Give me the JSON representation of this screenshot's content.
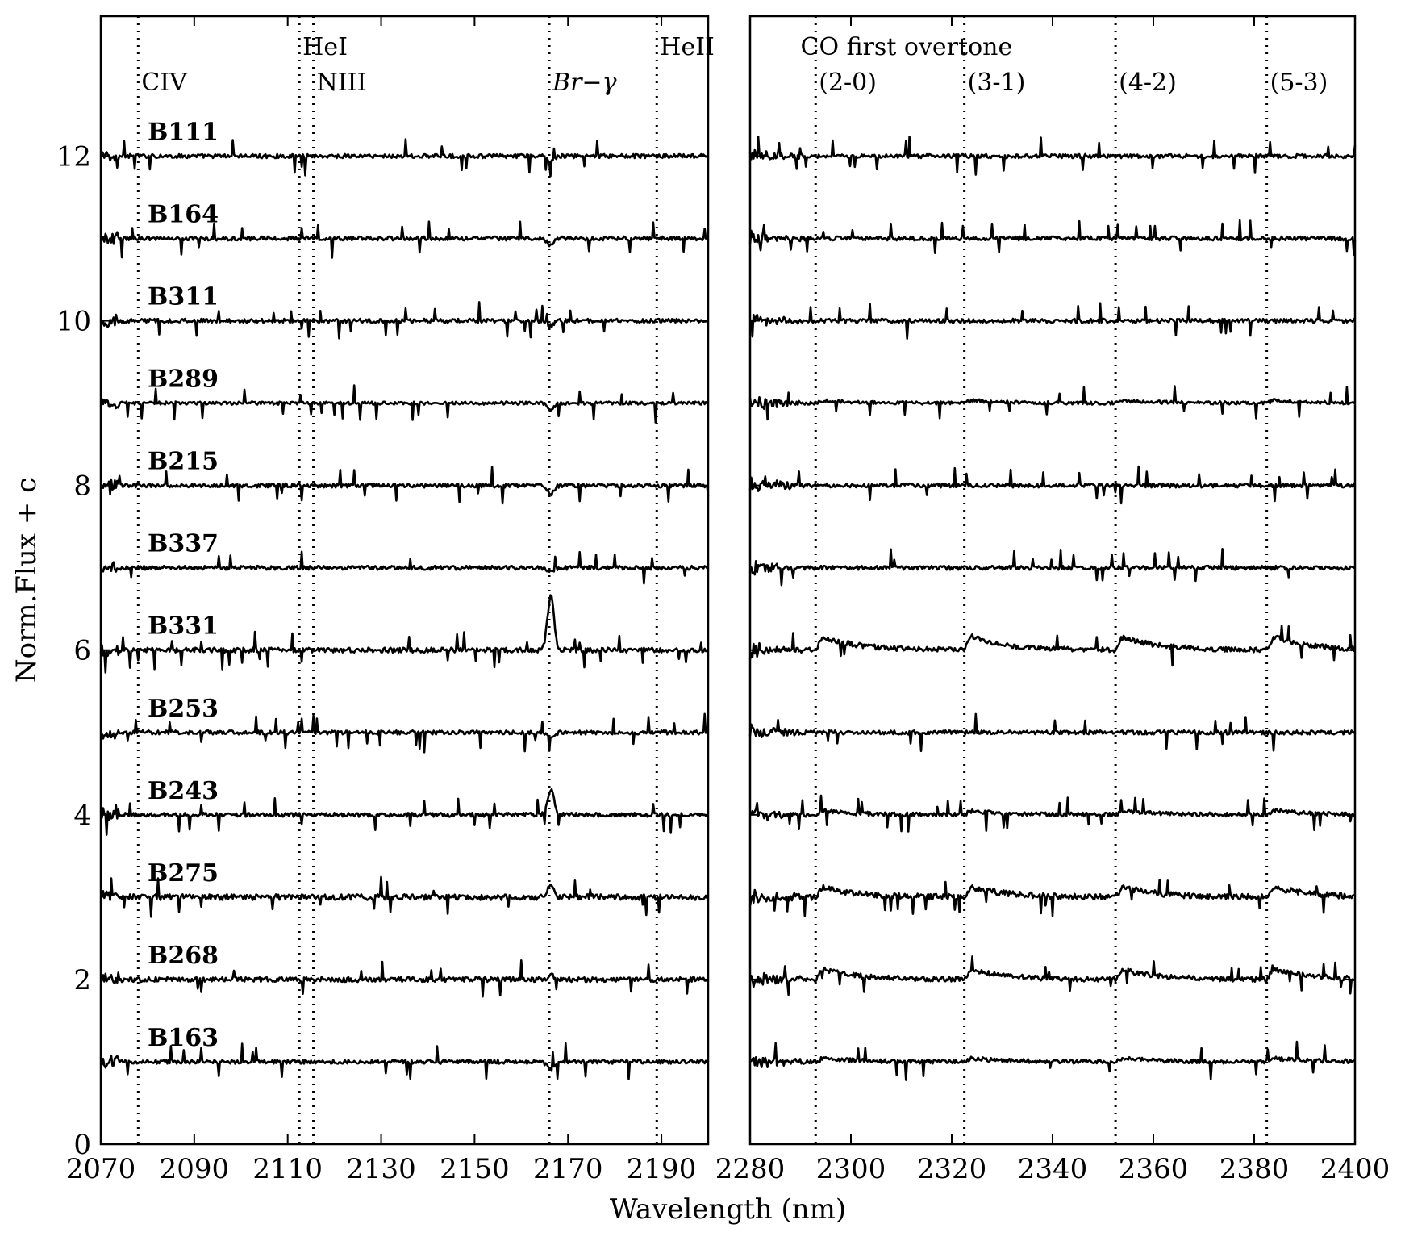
{
  "chart_data": {
    "type": "line",
    "title": "",
    "xlabel": "Wavelength (nm)",
    "ylabel": "Norm.Flux + c",
    "ylim": [
      0,
      13.7
    ],
    "yticks": [
      0,
      2,
      4,
      6,
      8,
      10,
      12
    ],
    "grid": false,
    "panels": [
      {
        "name": "left",
        "xlim": [
          2070,
          2200
        ],
        "xticks": [
          2070,
          2090,
          2110,
          2130,
          2150,
          2170,
          2190
        ],
        "markers": [
          {
            "label": "CIV",
            "x": 2078,
            "style": "normal",
            "label_row": "lower"
          },
          {
            "label": "HeI",
            "x": 2112.5,
            "style": "normal",
            "label_row": "upper"
          },
          {
            "label": "NIII",
            "x": 2115.5,
            "style": "normal",
            "label_row": "lower"
          },
          {
            "label": "Br−γ",
            "x": 2166,
            "style": "italic",
            "label_row": "lower"
          },
          {
            "label": "HeII",
            "x": 2189,
            "style": "normal",
            "label_row": "upper"
          }
        ]
      },
      {
        "name": "right",
        "xlim": [
          2280,
          2400
        ],
        "xticks": [
          2280,
          2300,
          2320,
          2340,
          2360,
          2380,
          2400
        ],
        "group_label": "CO first overtone",
        "markers": [
          {
            "label": "(2-0)",
            "x": 2293
          },
          {
            "label": "(3-1)",
            "x": 2322.5
          },
          {
            "label": "(4-2)",
            "x": 2352.5
          },
          {
            "label": "(5-3)",
            "x": 2382.5
          }
        ]
      }
    ],
    "series": [
      {
        "name": "B111",
        "offset": 12,
        "noise": 0.025,
        "brg": -0.07,
        "co": 0.0
      },
      {
        "name": "B164",
        "offset": 11,
        "noise": 0.025,
        "brg": -0.08,
        "co": 0.0
      },
      {
        "name": "B311",
        "offset": 10,
        "noise": 0.025,
        "brg": -0.06,
        "co": 0.0
      },
      {
        "name": "B289",
        "offset": 9,
        "noise": 0.02,
        "brg": -0.08,
        "co": 0.04
      },
      {
        "name": "B215",
        "offset": 8,
        "noise": 0.025,
        "brg": -0.1,
        "co": 0.0
      },
      {
        "name": "B337",
        "offset": 7,
        "noise": 0.025,
        "brg": -0.04,
        "co": 0.0
      },
      {
        "name": "B331",
        "offset": 6,
        "noise": 0.03,
        "brg": 0.65,
        "co": 0.2
      },
      {
        "name": "B253",
        "offset": 5,
        "noise": 0.025,
        "brg": -0.06,
        "co": 0.0
      },
      {
        "name": "B243",
        "offset": 4,
        "noise": 0.025,
        "brg": 0.3,
        "co": 0.06
      },
      {
        "name": "B275",
        "offset": 3,
        "noise": 0.035,
        "brg": 0.15,
        "co": 0.15
      },
      {
        "name": "B268",
        "offset": 2,
        "noise": 0.03,
        "brg": 0.05,
        "co": 0.15
      },
      {
        "name": "B163",
        "offset": 1,
        "noise": 0.025,
        "brg": -0.1,
        "co": 0.05
      }
    ]
  }
}
